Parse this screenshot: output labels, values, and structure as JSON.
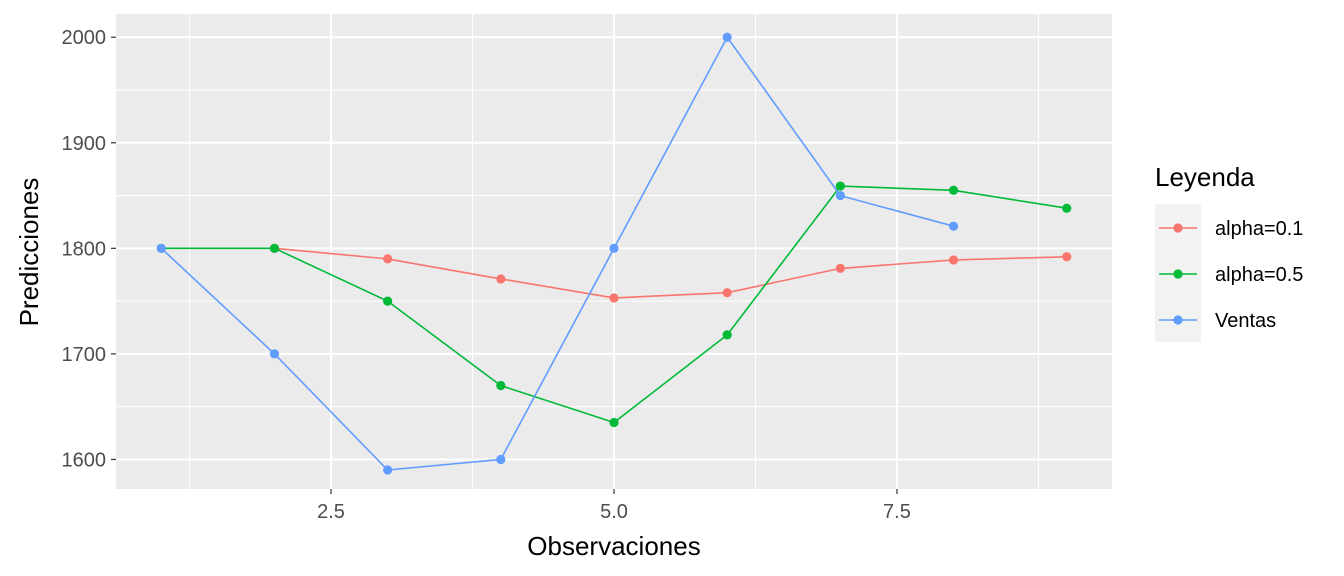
{
  "chart_data": {
    "type": "line",
    "xlabel": "Observaciones",
    "ylabel": "Predicciones",
    "xlim": [
      0.6,
      9.4
    ],
    "ylim": [
      1572,
      2022
    ],
    "x_ticks": [
      2.5,
      5.0,
      7.5
    ],
    "x_tick_labels": [
      "2.5",
      "5.0",
      "7.5"
    ],
    "y_ticks": [
      1600,
      1700,
      1800,
      1900,
      2000
    ],
    "y_tick_labels": [
      "1600",
      "1700",
      "1800",
      "1900",
      "2000"
    ],
    "grid": true,
    "legend": {
      "title": "Leyenda",
      "position": "right"
    },
    "series": [
      {
        "name": "alpha=0.1",
        "color": "#F8766D",
        "x": [
          2,
          3,
          4,
          5,
          6,
          7,
          8,
          9
        ],
        "y": [
          1800,
          1790,
          1771,
          1753,
          1758,
          1781,
          1789,
          1792
        ]
      },
      {
        "name": "alpha=0.5",
        "color": "#00BA38",
        "x": [
          1,
          2,
          3,
          4,
          5,
          6,
          7,
          8,
          9
        ],
        "y": [
          1800,
          1800,
          1750,
          1670,
          1635,
          1718,
          1859,
          1855,
          1838
        ]
      },
      {
        "name": "Ventas",
        "color": "#619CFF",
        "x": [
          1,
          2,
          3,
          4,
          5,
          6,
          7,
          8
        ],
        "y": [
          1800,
          1700,
          1590,
          1600,
          1800,
          2000,
          1850,
          1821
        ]
      }
    ]
  }
}
